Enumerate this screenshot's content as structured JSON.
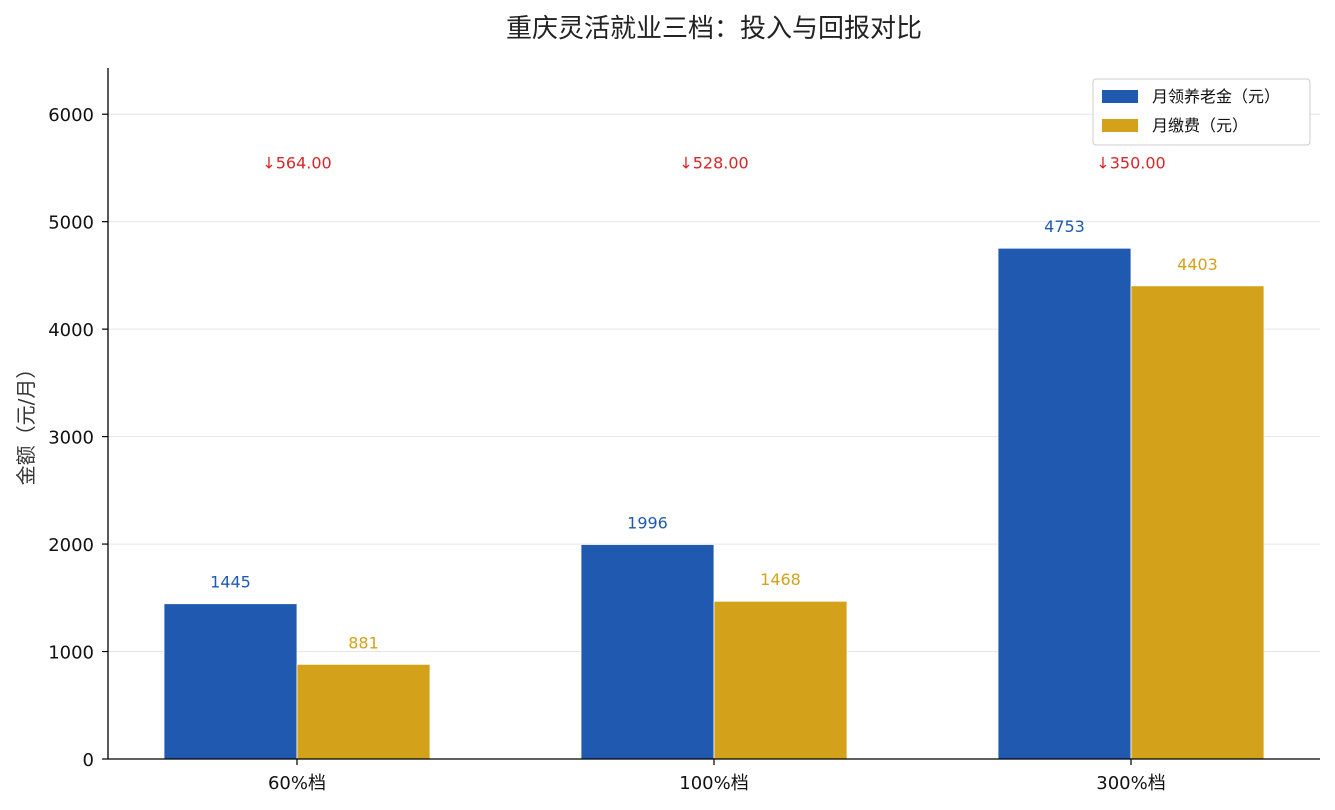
{
  "chart_data": {
    "type": "bar",
    "title": "重庆灵活就业三档：投入与回报对比",
    "xlabel": "",
    "ylabel": "金额（元/月）",
    "categories": [
      "60%档",
      "100%档",
      "300%档"
    ],
    "series": [
      {
        "name": "月领养老金（元）",
        "values": [
          1445,
          1996,
          4753
        ],
        "color": "#1f5ab0",
        "labels": [
          "1445",
          "1996",
          "4753"
        ]
      },
      {
        "name": "月缴费（元）",
        "values": [
          881,
          1468,
          4403
        ],
        "color": "#d4a11b",
        "labels": [
          "881",
          "1468",
          "4403"
        ]
      }
    ],
    "differences": {
      "labels": [
        "↓564.00",
        "↓528.00",
        "↓350.00"
      ],
      "value": 5550,
      "color": "#d62728"
    },
    "ylim": [
      0,
      6430
    ],
    "yticks": [
      0,
      1000,
      2000,
      3000,
      4000,
      5000,
      6000
    ],
    "grid": true,
    "legend_position": "top-right"
  }
}
